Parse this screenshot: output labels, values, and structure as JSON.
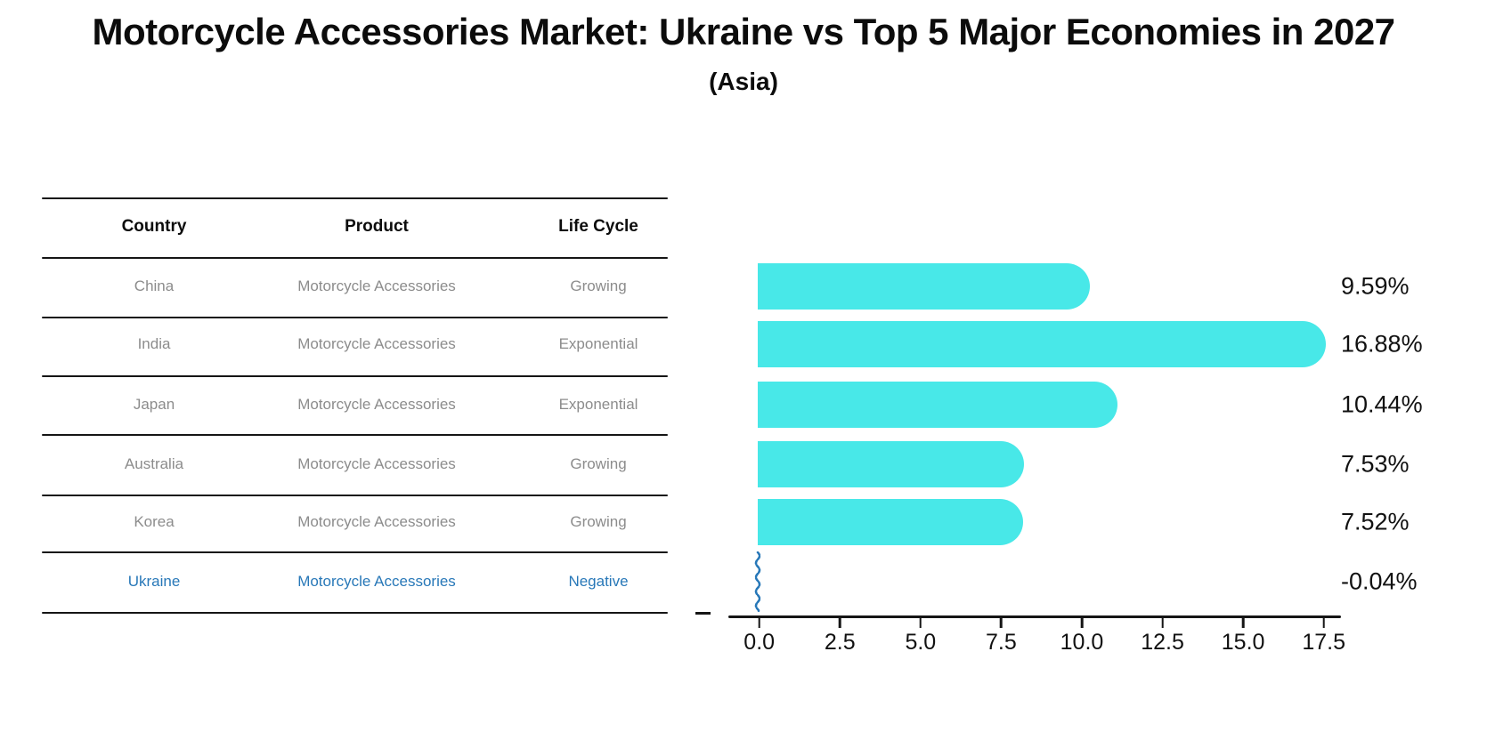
{
  "title": "Motorcycle Accessories Market: Ukraine vs Top 5 Major Economies in 2027",
  "subtitle": "(Asia)",
  "colors": {
    "bar": "#48E8E8",
    "highlight_blue": "#2878B8",
    "row_text_gray": "#8C8C8C",
    "text_black": "#0C0C0C"
  },
  "table": {
    "headers": [
      "Country",
      "Product",
      "Life Cycle"
    ],
    "rows": [
      {
        "country": "China",
        "product": "Motorcycle Accessories",
        "life_cycle": "Growing",
        "highlight": false
      },
      {
        "country": "India",
        "product": "Motorcycle Accessories",
        "life_cycle": "Exponential",
        "highlight": false
      },
      {
        "country": "Japan",
        "product": "Motorcycle Accessories",
        "life_cycle": "Exponential",
        "highlight": false
      },
      {
        "country": "Australia",
        "product": "Motorcycle Accessories",
        "life_cycle": "Growing",
        "highlight": false
      },
      {
        "country": "Korea",
        "product": "Motorcycle Accessories",
        "life_cycle": "Growing",
        "highlight": false
      },
      {
        "country": "Ukraine",
        "product": "Motorcycle Accessories",
        "life_cycle": "Negative",
        "highlight": true
      }
    ]
  },
  "chart_data": {
    "type": "bar",
    "orientation": "horizontal",
    "title": "Motorcycle Accessories Market: Ukraine vs Top 5 Major Economies in 2027 (Asia)",
    "categories": [
      "China",
      "India",
      "Japan",
      "Australia",
      "Korea",
      "Ukraine"
    ],
    "values": [
      9.59,
      16.88,
      10.44,
      7.53,
      7.52,
      -0.04
    ],
    "value_labels": [
      "9.59%",
      "16.88%",
      "10.44%",
      "7.53%",
      "7.52%",
      "-0.04%"
    ],
    "xlim": [
      0,
      17.5
    ],
    "x_ticks": [
      "0.0",
      "2.5",
      "5.0",
      "7.5",
      "10.0",
      "12.5",
      "15.0",
      "17.5"
    ],
    "grid": false,
    "legend": false,
    "bar_color": "#48E8E8",
    "negative_marker_color": "#2878B8"
  }
}
